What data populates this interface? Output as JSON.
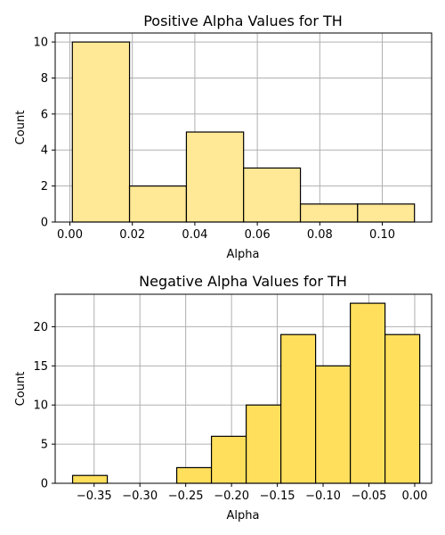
{
  "chart_data": [
    {
      "type": "bar",
      "title": "Positive Alpha Values for TH",
      "xlabel": "Alpha",
      "ylabel": "Count",
      "bins": [
        {
          "x0": 0.0008,
          "x1": 0.0191,
          "count": 10
        },
        {
          "x0": 0.0191,
          "x1": 0.0373,
          "count": 2
        },
        {
          "x0": 0.0373,
          "x1": 0.0556,
          "count": 5
        },
        {
          "x0": 0.0556,
          "x1": 0.0738,
          "count": 3
        },
        {
          "x0": 0.0738,
          "x1": 0.0921,
          "count": 1
        },
        {
          "x0": 0.0921,
          "x1": 0.1103,
          "count": 1
        }
      ],
      "xlim": [
        -0.0047,
        0.1158
      ],
      "ylim": [
        0,
        10.5
      ],
      "xticks": [
        0.0,
        0.02,
        0.04,
        0.06,
        0.08,
        0.1
      ],
      "xtick_labels": [
        "0.00",
        "0.02",
        "0.04",
        "0.06",
        "0.08",
        "0.10"
      ],
      "yticks": [
        0,
        2,
        4,
        6,
        8,
        10
      ],
      "ytick_labels": [
        "0",
        "2",
        "4",
        "6",
        "8",
        "10"
      ],
      "bar_color": "#ffe896",
      "edge_color": "#000000",
      "grid": true
    },
    {
      "type": "bar",
      "title": "Negative Alpha Values for TH",
      "xlabel": "Alpha",
      "ylabel": "Count",
      "bins": [
        {
          "x0": -0.3735,
          "x1": -0.3356,
          "count": 1
        },
        {
          "x0": -0.3356,
          "x1": -0.2977,
          "count": 0
        },
        {
          "x0": -0.2977,
          "x1": -0.2598,
          "count": 0
        },
        {
          "x0": -0.2598,
          "x1": -0.2219,
          "count": 2
        },
        {
          "x0": -0.2219,
          "x1": -0.184,
          "count": 6
        },
        {
          "x0": -0.184,
          "x1": -0.1461,
          "count": 10
        },
        {
          "x0": -0.1461,
          "x1": -0.1082,
          "count": 19
        },
        {
          "x0": -0.1082,
          "x1": -0.0703,
          "count": 15
        },
        {
          "x0": -0.0703,
          "x1": -0.0324,
          "count": 23
        },
        {
          "x0": -0.0324,
          "x1": 0.0055,
          "count": 19
        }
      ],
      "xlim": [
        -0.3925,
        0.0185
      ],
      "ylim": [
        0,
        24.15
      ],
      "xticks": [
        -0.35,
        -0.3,
        -0.25,
        -0.2,
        -0.15,
        -0.1,
        -0.05,
        0.0
      ],
      "xtick_labels": [
        "−0.35",
        "−0.30",
        "−0.25",
        "−0.20",
        "−0.15",
        "−0.10",
        "−0.05",
        "0.00"
      ],
      "yticks": [
        0,
        5,
        10,
        15,
        20
      ],
      "ytick_labels": [
        "0",
        "5",
        "10",
        "15",
        "20"
      ],
      "bar_color": "#ffdf5c",
      "edge_color": "#000000",
      "grid": true
    }
  ]
}
